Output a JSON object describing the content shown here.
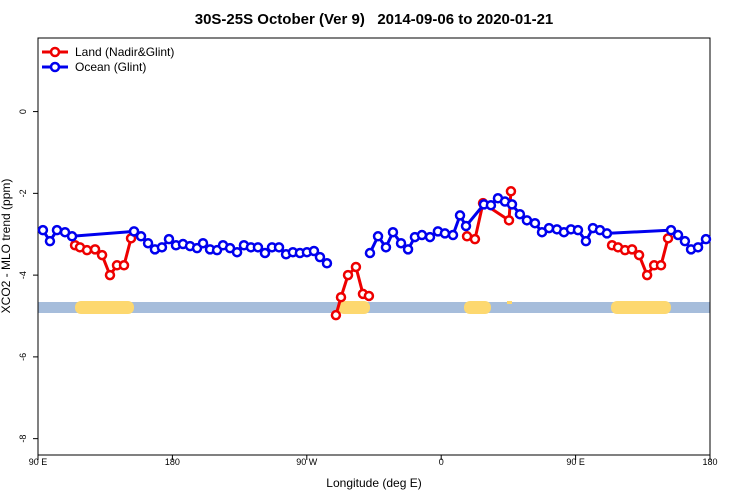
{
  "chart_data": {
    "type": "line",
    "title": "30S-25S October (Ver 9)   2014-09-06 to 2020-01-21",
    "x_label": "Longitude (deg E)",
    "y_label": "XCO2 - MLO trend (ppm)",
    "xlim": [
      90,
      540
    ],
    "xticks": [
      {
        "value": 90,
        "label": "90 E"
      },
      {
        "value": 180,
        "label": "180"
      },
      {
        "value": 270,
        "label": "90 W"
      },
      {
        "value": 360,
        "label": "0"
      },
      {
        "value": 450,
        "label": "90 E"
      },
      {
        "value": 540,
        "label": "180"
      }
    ],
    "ylim": [
      -8.4,
      1.8
    ],
    "yticks": [
      0,
      -2,
      -4,
      -6,
      -8
    ],
    "legend": "top-left",
    "series": [
      {
        "name": "Land (Nadir&Glint)",
        "color": "#ee0000",
        "x": [
          114.8,
          118.1,
          122.8,
          128.2,
          132.9,
          138.2,
          142.9,
          147.6,
          152.3,
          null,
          289.5,
          292.9,
          297.6,
          302.9,
          307.6,
          311.6,
          null,
          377.3,
          382.6,
          388.0,
          405.4,
          406.7,
          null,
          474.4,
          478.4,
          483.1,
          487.8,
          492.5,
          497.9,
          502.6,
          507.2,
          511.9
        ],
        "values": [
          -3.27,
          -3.32,
          -3.39,
          -3.37,
          -3.51,
          -4.0,
          -3.76,
          -3.76,
          -3.1,
          null,
          -4.98,
          -4.54,
          -4.0,
          -3.8,
          -4.46,
          -4.51,
          null,
          -3.05,
          -3.12,
          -2.24,
          -2.66,
          -1.95,
          null,
          -3.27,
          -3.32,
          -3.39,
          -3.37,
          -3.51,
          -4.0,
          -3.76,
          -3.76,
          -3.1
        ]
      },
      {
        "name": "Ocean (Glint)",
        "color": "#0000ee",
        "x": [
          93.3,
          98.0,
          102.7,
          108.1,
          112.8,
          154.3,
          159.0,
          163.7,
          168.3,
          173.0,
          177.7,
          182.4,
          187.1,
          191.8,
          196.5,
          200.5,
          205.2,
          209.9,
          213.9,
          218.6,
          223.3,
          227.9,
          232.6,
          237.3,
          242.0,
          246.7,
          251.4,
          256.1,
          260.7,
          265.4,
          270.1,
          274.8,
          278.8,
          283.5,
          null,
          312.3,
          317.7,
          323.0,
          327.7,
          333.1,
          337.8,
          342.4,
          347.1,
          352.5,
          357.8,
          362.5,
          367.9,
          372.6,
          376.6,
          388.6,
          393.3,
          398.0,
          402.7,
          407.4,
          412.7,
          417.4,
          422.8,
          427.5,
          432.2,
          437.5,
          442.2,
          446.9,
          451.6,
          456.9,
          461.6,
          466.3,
          471.0,
          513.9,
          518.6,
          523.2,
          527.3,
          532.0,
          537.3
        ],
        "values": [
          -2.9,
          -3.17,
          -2.9,
          -2.95,
          -3.05,
          -2.93,
          -3.05,
          -3.22,
          -3.37,
          -3.32,
          -3.12,
          -3.27,
          -3.24,
          -3.29,
          -3.34,
          -3.22,
          -3.37,
          -3.39,
          -3.27,
          -3.34,
          -3.44,
          -3.27,
          -3.32,
          -3.32,
          -3.46,
          -3.32,
          -3.32,
          -3.49,
          -3.44,
          -3.46,
          -3.44,
          -3.41,
          -3.56,
          -3.71,
          null,
          -3.46,
          -3.05,
          -3.32,
          -2.95,
          -3.22,
          -3.37,
          -3.07,
          -3.02,
          -3.07,
          -2.93,
          -2.98,
          -3.02,
          -2.54,
          -2.8,
          -2.27,
          -2.29,
          -2.12,
          -2.2,
          -2.27,
          -2.51,
          -2.66,
          -2.73,
          -2.95,
          -2.85,
          -2.88,
          -2.95,
          -2.88,
          -2.9,
          -3.17,
          -2.85,
          -2.9,
          -2.98,
          -2.9,
          -3.02,
          -3.17,
          -3.37,
          -3.32,
          -3.12
        ]
      }
    ]
  }
}
